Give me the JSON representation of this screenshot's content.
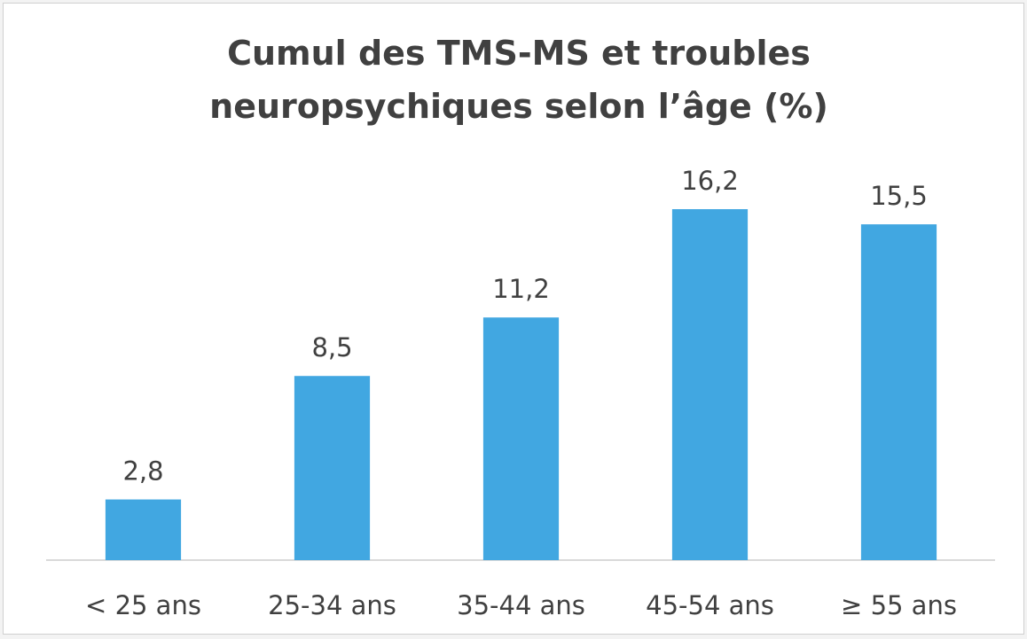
{
  "chart_data": {
    "type": "bar",
    "title": "Cumul des TMS-MS et troubles neuropsychiques selon l’âge (%)",
    "categories": [
      "< 25 ans",
      "25-34 ans",
      "35-44 ans",
      "45-54 ans",
      "≥ 55 ans"
    ],
    "values": [
      2.8,
      8.5,
      11.2,
      16.2,
      15.5
    ],
    "value_labels": [
      "2,8",
      "8,5",
      "11,2",
      "16,2",
      "15,5"
    ],
    "color": "#41a7e1"
  }
}
